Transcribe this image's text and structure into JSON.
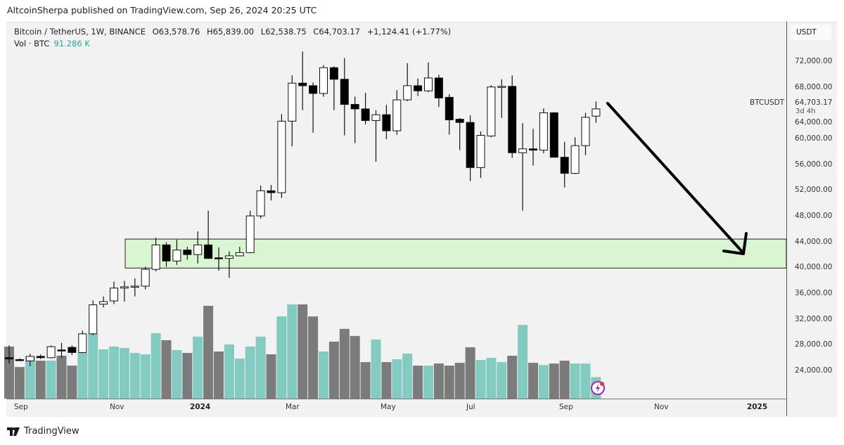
{
  "header": {
    "publish_text": "AltcoinSherpa published on TradingView.com, Sep 26, 2024 20:25 UTC"
  },
  "legend": {
    "symbol": "Bitcoin / TetherUS, 1W, BINANCE",
    "open": "O63,578.76",
    "high": "H65,839.00",
    "low": "L62,538.75",
    "close": "C64,703.17",
    "change": "+1,124.41 (+1.77%)",
    "vol_label": "Vol · BTC",
    "vol_value": "91.286 K"
  },
  "price_axis": {
    "unit": "USDT",
    "symbol_label": "BTCUSDT",
    "last_price": "64,703.17",
    "countdown": "3d 4h"
  },
  "footer": {
    "brand": "TradingView"
  },
  "colors": {
    "up_volume": "#83cbc1",
    "down_volume": "#7b7b7b",
    "zone_fill": "#d9f5d2",
    "candle_up": "#ffffff",
    "candle_down": "#000000"
  },
  "chart_data": {
    "type": "candlestick",
    "interval": "1W",
    "y_ticks": [
      "72,000.00",
      "68,000.00",
      "64,000.00",
      "60,000.00",
      "56,000.00",
      "52,000.00",
      "48,000.00",
      "44,000.00",
      "40,000.00",
      "36,000.00",
      "32,000.00",
      "28,000.00",
      "24,000.00"
    ],
    "ylim": [
      23000,
      74000
    ],
    "x_ticks": [
      {
        "label": "Sep",
        "bold": false
      },
      {
        "label": "Nov",
        "bold": false
      },
      {
        "label": "2024",
        "bold": true
      },
      {
        "label": "Mar",
        "bold": false
      },
      {
        "label": "May",
        "bold": false
      },
      {
        "label": "Jul",
        "bold": false
      },
      {
        "label": "Sep",
        "bold": false
      },
      {
        "label": "Nov",
        "bold": false
      },
      {
        "label": "2025",
        "bold": true
      }
    ],
    "first_week": "2023-08-28",
    "ohlc": [
      [
        26100,
        28000,
        25200,
        25900
      ],
      [
        25800,
        26000,
        25600,
        25700
      ],
      [
        25600,
        26700,
        24800,
        26300
      ],
      [
        26300,
        26600,
        25900,
        26100
      ],
      [
        26100,
        28000,
        26000,
        27800
      ],
      [
        27300,
        28400,
        26100,
        27200
      ],
      [
        27700,
        28000,
        26500,
        26900
      ],
      [
        26900,
        30300,
        26800,
        29800
      ],
      [
        29800,
        35000,
        29600,
        34300
      ],
      [
        34400,
        35600,
        33900,
        34800
      ],
      [
        34900,
        37900,
        34400,
        36900
      ],
      [
        36900,
        38000,
        34800,
        37100
      ],
      [
        37100,
        38400,
        35600,
        37200
      ],
      [
        37200,
        40200,
        36700,
        39800
      ],
      [
        39800,
        44700,
        39500,
        43600
      ],
      [
        43600,
        44000,
        40200,
        41100
      ],
      [
        41100,
        44400,
        40500,
        42800
      ],
      [
        42800,
        43300,
        41300,
        42100
      ],
      [
        42100,
        45700,
        40700,
        43600
      ],
      [
        43600,
        48900,
        41400,
        41500
      ],
      [
        41600,
        43200,
        39600,
        41500
      ],
      [
        41500,
        42600,
        38500,
        41900
      ],
      [
        41900,
        43300,
        41800,
        42400
      ],
      [
        42400,
        48900,
        42300,
        48100
      ],
      [
        48100,
        52800,
        47700,
        52000
      ],
      [
        52000,
        52900,
        50500,
        51700
      ],
      [
        51700,
        63900,
        50900,
        62800
      ],
      [
        62800,
        69900,
        58900,
        68700
      ],
      [
        68700,
        73600,
        64500,
        68300
      ],
      [
        68300,
        68800,
        61000,
        67100
      ],
      [
        67100,
        71500,
        66600,
        71100
      ],
      [
        71100,
        71300,
        64500,
        69300
      ],
      [
        69300,
        72600,
        60600,
        65400
      ],
      [
        65400,
        66600,
        59400,
        64700
      ],
      [
        64700,
        67200,
        62300,
        62900
      ],
      [
        62900,
        64500,
        56500,
        63800
      ],
      [
        63800,
        65300,
        60000,
        61300
      ],
      [
        61300,
        67600,
        60700,
        66100
      ],
      [
        66100,
        71800,
        65900,
        68300
      ],
      [
        68300,
        69400,
        66700,
        67500
      ],
      [
        67500,
        71900,
        67300,
        69500
      ],
      [
        69500,
        70000,
        65000,
        66400
      ],
      [
        66500,
        67000,
        60700,
        63000
      ],
      [
        63100,
        63300,
        58300,
        62600
      ],
      [
        62600,
        63700,
        53500,
        55600
      ],
      [
        55600,
        61200,
        54000,
        60600
      ],
      [
        60500,
        68400,
        60300,
        68100
      ],
      [
        68200,
        69300,
        63300,
        68200
      ],
      [
        68200,
        69900,
        57100,
        57900
      ],
      [
        57900,
        62500,
        48900,
        58500
      ],
      [
        58500,
        61600,
        55900,
        58300
      ],
      [
        58300,
        64800,
        57800,
        64100
      ],
      [
        64100,
        64200,
        57200,
        57200
      ],
      [
        57200,
        59600,
        52500,
        54700
      ],
      [
        54700,
        60300,
        54600,
        59000
      ],
      [
        59000,
        64100,
        57500,
        63400
      ],
      [
        63578.76,
        65839.0,
        62538.75,
        64703.17
      ]
    ],
    "volume_k": [
      221,
      134,
      179,
      161,
      161,
      182,
      140,
      194,
      275,
      209,
      221,
      215,
      194,
      188,
      278,
      248,
      206,
      194,
      263,
      394,
      200,
      230,
      170,
      221,
      263,
      188,
      349,
      400,
      400,
      349,
      200,
      242,
      296,
      266,
      155,
      251,
      155,
      167,
      191,
      140,
      140,
      149,
      140,
      152,
      218,
      164,
      173,
      155,
      182,
      313,
      152,
      143,
      149,
      161,
      149,
      149,
      91.286
    ],
    "annotations": {
      "support_zone": {
        "from": 40000,
        "to": 44500,
        "start_week": "2023-11-27"
      },
      "arrow": {
        "from": {
          "week": "2024-10-07",
          "price": 66000
        },
        "to": {
          "week": "2024-12-30",
          "price": 42000
        }
      }
    }
  }
}
